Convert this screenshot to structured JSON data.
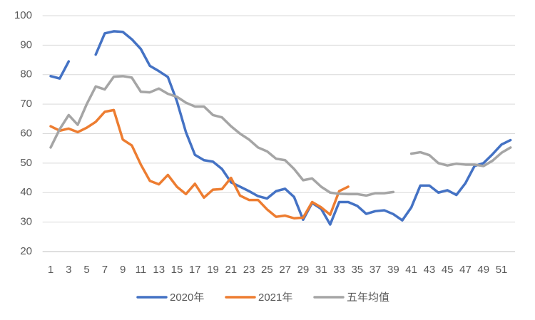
{
  "chart_data": {
    "type": "line",
    "categories": [
      1,
      null,
      3,
      null,
      5,
      null,
      7,
      null,
      9,
      null,
      11,
      null,
      13,
      null,
      15,
      null,
      17,
      null,
      19,
      null,
      21,
      null,
      23,
      null,
      25,
      null,
      27,
      null,
      29,
      null,
      31,
      null,
      33,
      null,
      35,
      null,
      37,
      null,
      39,
      null,
      41,
      null,
      43,
      null,
      45,
      null,
      47,
      null,
      49,
      null,
      51,
      null
    ],
    "series": [
      {
        "name": "2020年",
        "color": "#4472c4",
        "values": [
          79.5,
          78.7,
          84.5,
          null,
          null,
          86.8,
          94,
          94.7,
          94.5,
          92,
          88.7,
          83,
          81.2,
          79.2,
          71,
          60.5,
          52.8,
          51,
          50.5,
          48,
          43.5,
          42,
          40.5,
          38.8,
          38,
          40.5,
          41.3,
          38.5,
          30.8,
          36.5,
          34.5,
          29.2,
          36.8,
          36.8,
          35.5,
          32.8,
          33.7,
          34,
          32.7,
          30.6,
          35,
          42.4,
          42.4,
          40,
          40.8,
          39.2,
          43.2,
          49,
          50,
          53,
          56.3,
          57.8
        ]
      },
      {
        "name": "2021年",
        "color": "#ed7d31",
        "values": [
          62.5,
          61,
          61.7,
          60.5,
          62,
          64,
          67.4,
          68,
          58,
          56,
          49.5,
          44,
          42.8,
          46,
          42,
          39.5,
          43,
          38.3,
          41,
          41.2,
          45,
          39,
          37.5,
          37.5,
          34.3,
          31.8,
          32.2,
          31.3,
          31.5,
          36.8,
          35,
          32.5,
          40.5,
          42,
          null,
          null,
          null,
          null,
          null,
          null,
          null,
          null,
          null,
          null,
          null,
          null,
          null,
          null,
          null,
          null,
          null,
          null
        ]
      },
      {
        "name": "五年均值",
        "color": "#a5a5a5",
        "values": [
          55.3,
          61.5,
          66.3,
          63,
          70,
          76,
          75,
          79.3,
          79.5,
          79,
          74.2,
          74,
          75.3,
          73.5,
          72.5,
          70.5,
          69.2,
          69.2,
          66.3,
          65.5,
          62.5,
          60,
          58,
          55.3,
          54,
          51.5,
          51,
          48,
          44.2,
          44.8,
          42,
          40,
          39.6,
          39.5,
          39.5,
          39,
          39.8,
          39.8,
          40.2,
          null,
          53.2,
          53.7,
          52.7,
          50,
          49.2,
          49.8,
          49.5,
          49.5,
          49,
          50.8,
          53.5,
          55.3
        ]
      }
    ],
    "ylim": [
      20,
      100
    ],
    "yticks": [
      20,
      30,
      40,
      50,
      60,
      70,
      80,
      90,
      100
    ],
    "grid": true,
    "legend": "bottom"
  }
}
